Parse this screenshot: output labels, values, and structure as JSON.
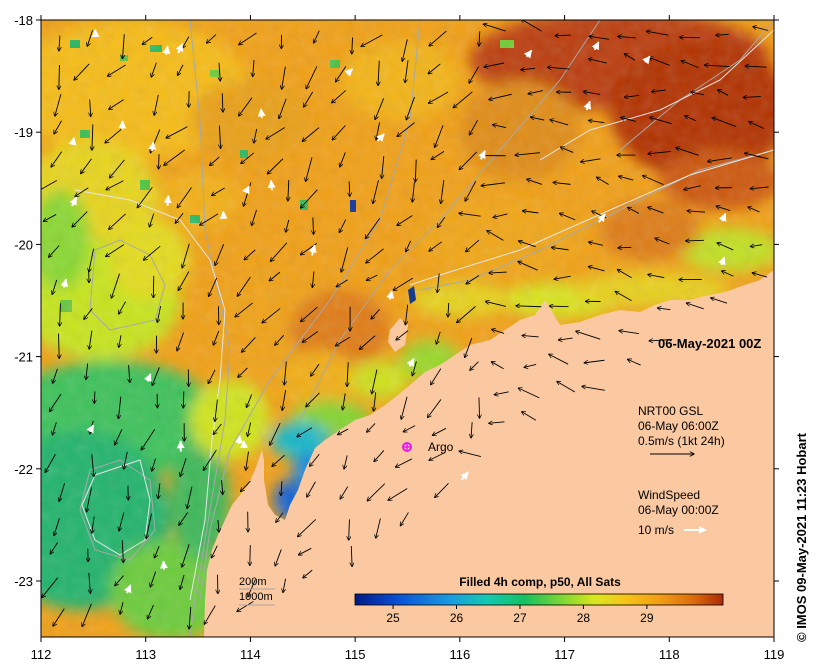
{
  "map": {
    "date_stamp": "06-May-2021 00Z",
    "credit": "© IMOS 09-May-2021 11:23 Hobart",
    "argo_label": "Argo",
    "current_legend": {
      "line1": "NRT00 GSL",
      "line2": "06-May 06:00Z",
      "line3": "0.5m/s (1kt 24h)"
    },
    "wind_legend": {
      "line1": "WindSpeed",
      "line2": "06-May 00:00Z",
      "line3": "10 m/s"
    },
    "depth_legend": {
      "contour_1": "200m",
      "contour_2": "1000m"
    },
    "colorbar": {
      "title": "Filled 4h comp, p50, All Sats",
      "ticks": [
        "25",
        "26",
        "27",
        "28",
        "29"
      ],
      "colors": [
        "#001a8a",
        "#0b52d6",
        "#1b9ce0",
        "#14c8b2",
        "#14c060",
        "#7cd634",
        "#d8e81c",
        "#f6c316",
        "#f19c14",
        "#dc6b0c",
        "#ad2a06"
      ]
    },
    "axes": {
      "x_ticks": [
        "112",
        "113",
        "114",
        "115",
        "116",
        "117",
        "118",
        "119"
      ],
      "y_ticks": [
        "-18",
        "-19",
        "-20",
        "-21",
        "-22",
        "-23"
      ]
    },
    "colors": {
      "land": "#fbc9a1",
      "contour": "#a8a8a8",
      "argo_marker": "#e61ce6"
    }
  }
}
